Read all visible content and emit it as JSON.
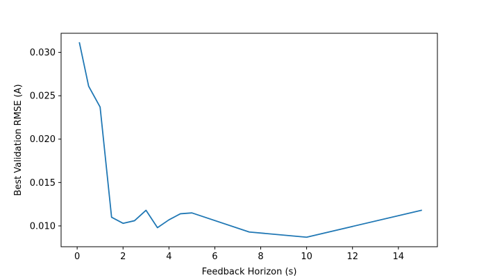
{
  "chart_data": {
    "type": "line",
    "title": "",
    "xlabel": "Feedback Horizon (s)",
    "ylabel": "Best Validation RMSE (A)",
    "xlim": [
      -0.7,
      15.7
    ],
    "ylim": [
      0.0076,
      0.0322
    ],
    "x_ticks": [
      {
        "value": 0,
        "label": "0"
      },
      {
        "value": 2,
        "label": "2"
      },
      {
        "value": 4,
        "label": "4"
      },
      {
        "value": 6,
        "label": "6"
      },
      {
        "value": 8,
        "label": "8"
      },
      {
        "value": 10,
        "label": "10"
      },
      {
        "value": 12,
        "label": "12"
      },
      {
        "value": 14,
        "label": "14"
      }
    ],
    "y_ticks": [
      {
        "value": 0.01,
        "label": "0.010"
      },
      {
        "value": 0.015,
        "label": "0.015"
      },
      {
        "value": 0.02,
        "label": "0.020"
      },
      {
        "value": 0.025,
        "label": "0.025"
      },
      {
        "value": 0.03,
        "label": "0.030"
      }
    ],
    "grid": false,
    "legend": "none",
    "series": [
      {
        "color": "#1f77b4",
        "points": [
          {
            "x": 0.1,
            "y": 0.0311
          },
          {
            "x": 0.5,
            "y": 0.0261
          },
          {
            "x": 1.0,
            "y": 0.0237
          },
          {
            "x": 1.5,
            "y": 0.011
          },
          {
            "x": 2.0,
            "y": 0.0103
          },
          {
            "x": 2.5,
            "y": 0.0106
          },
          {
            "x": 3.0,
            "y": 0.0118
          },
          {
            "x": 3.5,
            "y": 0.0098
          },
          {
            "x": 4.0,
            "y": 0.0107
          },
          {
            "x": 4.5,
            "y": 0.0114
          },
          {
            "x": 5.0,
            "y": 0.0115
          },
          {
            "x": 7.5,
            "y": 0.0093
          },
          {
            "x": 10.0,
            "y": 0.0087
          },
          {
            "x": 15.0,
            "y": 0.0118
          }
        ]
      }
    ]
  }
}
